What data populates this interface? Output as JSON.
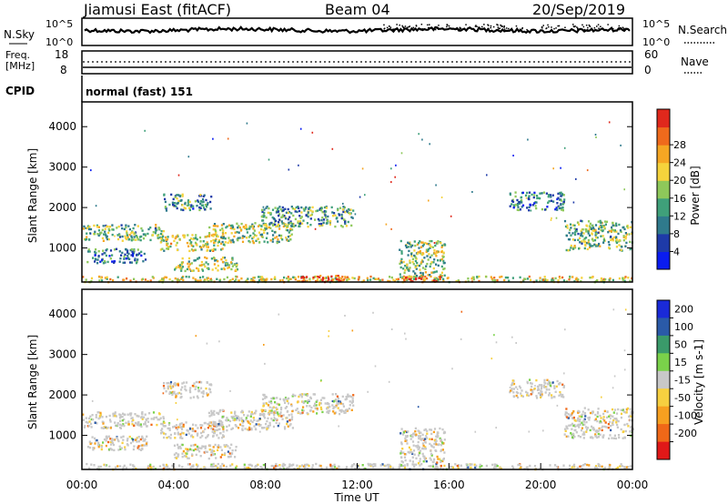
{
  "header": {
    "title": "Jiamusi East (fitACF)",
    "beam": "Beam 04",
    "date": "20/Sep/2019"
  },
  "noise_panel": {
    "left_label": "N.Sky",
    "right_label": "N.Search",
    "y_ticks": [
      "10^5",
      "10^0"
    ]
  },
  "freq_panel": {
    "left_label_line1": "Freq.",
    "left_label_line2": "[MHz]",
    "left_ticks": [
      "18",
      "8"
    ],
    "right_label": "Nave",
    "right_ticks": [
      "60",
      "0"
    ]
  },
  "cpid_panel": {
    "label": "CPID",
    "value": "normal (fast) 151"
  },
  "chart_data": [
    {
      "type": "heatmap",
      "name": "power",
      "ylabel": "Slant Range [km]",
      "ylim": [
        180,
        4590
      ],
      "y_ticks": [
        1000,
        2000,
        3000,
        4000
      ],
      "x_range_hours": [
        0,
        24
      ],
      "colorbar_label": "Power [dB]",
      "colorbar_ticks": [
        "4",
        "8",
        "12",
        "16",
        "20",
        "24",
        "28"
      ],
      "colorbar_colors": [
        "#0a1cf0",
        "#1e3aa8",
        "#2f7a8c",
        "#3fa07a",
        "#8ec85a",
        "#f5d33c",
        "#f5a623",
        "#ef6a1c",
        "#e0281c"
      ],
      "echo_regions": [
        {
          "t0": 0.0,
          "t1": 3.6,
          "r0": 1200,
          "r1": 1600,
          "level": 0.45
        },
        {
          "t0": 0.2,
          "t1": 2.8,
          "r0": 650,
          "r1": 1000,
          "level": 0.3
        },
        {
          "t0": 3.4,
          "t1": 6.2,
          "r0": 950,
          "r1": 1350,
          "level": 0.55
        },
        {
          "t0": 4.0,
          "t1": 6.8,
          "r0": 450,
          "r1": 800,
          "level": 0.5
        },
        {
          "t0": 5.5,
          "t1": 9.2,
          "r0": 1150,
          "r1": 1650,
          "level": 0.5
        },
        {
          "t0": 7.8,
          "t1": 11.8,
          "r0": 1550,
          "r1": 2050,
          "level": 0.4
        },
        {
          "t0": 3.5,
          "t1": 5.6,
          "r0": 1950,
          "r1": 2350,
          "level": 0.35
        },
        {
          "t0": 13.8,
          "t1": 15.8,
          "r0": 250,
          "r1": 1200,
          "level": 0.5
        },
        {
          "t0": 18.6,
          "t1": 21.0,
          "r0": 1950,
          "r1": 2400,
          "level": 0.3
        },
        {
          "t0": 21.0,
          "t1": 24.0,
          "r0": 950,
          "r1": 1700,
          "level": 0.45
        },
        {
          "t0": 0.0,
          "t1": 24.0,
          "r0": 180,
          "r1": 320,
          "level": 0.6
        },
        {
          "t0": 9.5,
          "t1": 11.5,
          "r0": 180,
          "r1": 340,
          "level": 0.9
        },
        {
          "t0": 14.0,
          "t1": 15.8,
          "r0": 180,
          "r1": 320,
          "level": 0.85
        }
      ]
    },
    {
      "type": "heatmap",
      "name": "velocity",
      "xlabel": "Time UT",
      "ylabel": "Slant Range [km]",
      "ylim": [
        180,
        4590
      ],
      "y_ticks": [
        1000,
        2000,
        3000,
        4000
      ],
      "x_ticks": [
        "00:00",
        "04:00",
        "08:00",
        "12:00",
        "16:00",
        "20:00",
        "00:00"
      ],
      "x_range_hours": [
        0,
        24
      ],
      "colorbar_label": "Velocity [m s-1]",
      "colorbar_ticks": [
        "200",
        "100",
        "50",
        "15",
        "-15",
        "-50",
        "-100",
        "-200"
      ],
      "colorbar_colors": [
        "#1a2ad8",
        "#2a5aa8",
        "#3a9a6a",
        "#7ad24a",
        "#c8c8c8",
        "#f7d040",
        "#f7a020",
        "#f06818",
        "#e01818"
      ],
      "echo_regions": [
        {
          "t0": 0.0,
          "t1": 3.6,
          "r0": 1200,
          "r1": 1600
        },
        {
          "t0": 0.2,
          "t1": 2.8,
          "r0": 650,
          "r1": 1000
        },
        {
          "t0": 3.4,
          "t1": 6.2,
          "r0": 950,
          "r1": 1350
        },
        {
          "t0": 4.0,
          "t1": 6.8,
          "r0": 450,
          "r1": 800
        },
        {
          "t0": 5.5,
          "t1": 9.2,
          "r0": 1150,
          "r1": 1650
        },
        {
          "t0": 7.8,
          "t1": 11.8,
          "r0": 1550,
          "r1": 2050
        },
        {
          "t0": 3.5,
          "t1": 5.6,
          "r0": 1950,
          "r1": 2350
        },
        {
          "t0": 13.8,
          "t1": 15.8,
          "r0": 250,
          "r1": 1200
        },
        {
          "t0": 18.6,
          "t1": 21.0,
          "r0": 1950,
          "r1": 2400
        },
        {
          "t0": 21.0,
          "t1": 24.0,
          "r0": 950,
          "r1": 1700
        },
        {
          "t0": 0.0,
          "t1": 24.0,
          "r0": 180,
          "r1": 320
        }
      ]
    }
  ]
}
